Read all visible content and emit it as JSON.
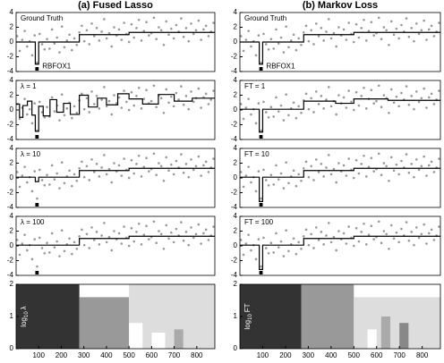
{
  "titles": [
    "(a) Fused Lasso",
    "(b) Markov Loss"
  ],
  "observations": {
    "x": [
      5,
      16,
      27,
      38,
      49,
      60,
      71,
      82,
      93,
      104,
      115,
      126,
      137,
      148,
      159,
      170,
      181,
      192,
      203,
      214,
      225,
      236,
      247,
      258,
      269,
      280,
      291,
      302,
      313,
      324,
      335,
      346,
      357,
      368,
      379,
      390,
      401,
      412,
      423,
      434,
      445,
      456,
      467,
      478,
      489,
      500,
      511,
      522,
      533,
      544,
      555,
      566,
      577,
      588,
      599,
      610,
      621,
      632,
      643,
      654,
      665,
      676,
      687,
      698,
      709,
      720,
      731,
      742,
      753,
      764,
      775,
      786,
      797,
      808,
      819,
      830,
      841,
      852,
      863,
      874
    ],
    "y": [
      0.8,
      -1.2,
      0.3,
      1.5,
      -0.6,
      0.1,
      -1.8,
      0.9,
      -2.8,
      1.1,
      -0.3,
      -1.0,
      0.4,
      -0.9,
      1.7,
      -0.2,
      0.6,
      -1.4,
      2.1,
      -0.7,
      0.2,
      1.0,
      -1.1,
      0.5,
      -0.4,
      1.3,
      2.2,
      0.1,
      1.6,
      -0.3,
      2.5,
      0.8,
      1.9,
      0.2,
      1.4,
      3.1,
      0.5,
      1.2,
      -0.6,
      2.0,
      0.9,
      1.7,
      0.3,
      2.6,
      1.1,
      0.0,
      2.4,
      0.6,
      1.9,
      3.0,
      0.2,
      1.5,
      2.7,
      0.9,
      1.2,
      3.3,
      0.4,
      2.0,
      1.6,
      -0.4,
      2.8,
      1.0,
      1.8,
      0.5,
      2.3,
      1.4,
      3.2,
      0.7,
      1.9,
      0.1,
      2.5,
      1.1,
      1.6,
      2.9,
      0.3,
      1.7,
      2.2,
      0.8,
      1.4,
      2.6
    ]
  },
  "chart_data": [
    {
      "type": "line",
      "label": "Ground Truth",
      "annotation": "RBFOX1",
      "xlim": [
        0,
        880
      ],
      "ylim": [
        -4,
        4
      ],
      "yticks": [
        -4,
        -2,
        0,
        2,
        4
      ],
      "highlight": [
        85,
        100
      ],
      "fit": {
        "x": [
          0,
          85,
          85,
          100,
          100,
          280,
          280,
          500,
          500,
          880
        ],
        "values": [
          0,
          0,
          -3,
          -3,
          0,
          0,
          1,
          1,
          1.3,
          1.3
        ]
      }
    },
    {
      "type": "line",
      "label": "λ = 1",
      "xlim": [
        0,
        880
      ],
      "ylim": [
        -4,
        4
      ],
      "yticks": [
        -4,
        -2,
        0,
        2,
        4
      ],
      "highlight": [
        85,
        100
      ],
      "fit": {
        "x": [
          0,
          15,
          15,
          30,
          30,
          50,
          50,
          70,
          70,
          85,
          85,
          100,
          100,
          120,
          120,
          150,
          150,
          180,
          180,
          210,
          210,
          240,
          240,
          280,
          280,
          320,
          320,
          360,
          360,
          400,
          400,
          450,
          450,
          500,
          500,
          560,
          560,
          630,
          630,
          700,
          700,
          780,
          780,
          880
        ],
        "values": [
          0.8,
          0.8,
          -1.0,
          -1.0,
          0.6,
          0.6,
          1.2,
          1.2,
          -0.7,
          -0.7,
          -2.9,
          -2.9,
          0.5,
          0.5,
          -0.8,
          -0.8,
          1.4,
          1.4,
          -0.3,
          -0.3,
          0.9,
          0.9,
          -0.6,
          -0.6,
          2.0,
          2.0,
          0.4,
          0.4,
          1.6,
          1.6,
          0.7,
          0.7,
          2.2,
          2.2,
          1.5,
          1.5,
          0.8,
          0.8,
          2.1,
          2.1,
          1.2,
          1.2,
          1.6,
          1.6
        ]
      }
    },
    {
      "type": "line",
      "label": "λ = 10",
      "xlim": [
        0,
        880
      ],
      "ylim": [
        -4,
        4
      ],
      "yticks": [
        -4,
        -2,
        0,
        2,
        4
      ],
      "highlight": [
        85,
        100
      ],
      "fit": {
        "x": [
          0,
          85,
          85,
          100,
          100,
          280,
          280,
          500,
          500,
          880
        ],
        "values": [
          0.1,
          0.1,
          -0.5,
          -0.5,
          0.1,
          0.1,
          1,
          1,
          1.3,
          1.3
        ]
      }
    },
    {
      "type": "line",
      "label": "λ = 100",
      "xlim": [
        0,
        880
      ],
      "ylim": [
        -4,
        4
      ],
      "yticks": [
        -4,
        -2,
        0,
        2,
        4
      ],
      "highlight": [
        85,
        100
      ],
      "fit": {
        "x": [
          0,
          280,
          280,
          500,
          500,
          880
        ],
        "values": [
          0.1,
          0.1,
          1,
          1,
          1.3,
          1.3
        ]
      }
    },
    {
      "type": "bands",
      "ylabel": {
        "text": "log",
        "sub": "10",
        "var": "λ"
      },
      "xlim": [
        0,
        880
      ],
      "ylim": [
        0,
        2
      ],
      "yticks": [
        0,
        1,
        2
      ],
      "xticks": [
        100,
        200,
        300,
        400,
        500,
        600,
        700,
        800
      ],
      "bands": [
        {
          "x": [
            0,
            280
          ],
          "height": 2,
          "color": "#333333"
        },
        {
          "x": [
            280,
            500
          ],
          "height": 1.6,
          "color": "#999999"
        },
        {
          "x": [
            500,
            880
          ],
          "height": 2,
          "color": "#dddddd"
        },
        {
          "x": [
            500,
            560
          ],
          "height": 0.8,
          "color": "#ffffff"
        },
        {
          "x": [
            600,
            660
          ],
          "height": 0.5,
          "color": "#ffffff"
        },
        {
          "x": [
            700,
            740
          ],
          "height": 0.6,
          "color": "#aaaaaa"
        }
      ]
    },
    {
      "type": "line",
      "label": "Ground Truth",
      "annotation": "RBFOX1",
      "xlim": [
        0,
        880
      ],
      "ylim": [
        -4,
        4
      ],
      "yticks": [
        -4,
        -2,
        0,
        2,
        4
      ],
      "highlight": [
        85,
        100
      ],
      "fit": {
        "x": [
          0,
          85,
          85,
          100,
          100,
          280,
          280,
          500,
          500,
          880
        ],
        "values": [
          0,
          0,
          -3,
          -3,
          0,
          0,
          1,
          1,
          1.3,
          1.3
        ]
      }
    },
    {
      "type": "line",
      "label": "FT = 1",
      "xlim": [
        0,
        880
      ],
      "ylim": [
        -4,
        4
      ],
      "yticks": [
        -4,
        -2,
        0,
        2,
        4
      ],
      "highlight": [
        85,
        100
      ],
      "fit": {
        "x": [
          0,
          85,
          85,
          100,
          100,
          280,
          280,
          420,
          420,
          500,
          500,
          650,
          650,
          880
        ],
        "values": [
          0.1,
          0.1,
          -3,
          -3,
          0.1,
          0.1,
          1.2,
          1.2,
          0.9,
          0.9,
          1.5,
          1.5,
          1.3,
          1.3
        ]
      }
    },
    {
      "type": "line",
      "label": "FT = 10",
      "xlim": [
        0,
        880
      ],
      "ylim": [
        -4,
        4
      ],
      "yticks": [
        -4,
        -2,
        0,
        2,
        4
      ],
      "highlight": [
        85,
        100
      ],
      "fit": {
        "x": [
          0,
          85,
          85,
          100,
          100,
          280,
          280,
          500,
          500,
          880
        ],
        "values": [
          0.1,
          0.1,
          -3.2,
          -3.2,
          0.1,
          0.1,
          1,
          1,
          1.3,
          1.3
        ]
      }
    },
    {
      "type": "line",
      "label": "FT = 100",
      "xlim": [
        0,
        880
      ],
      "ylim": [
        -4,
        4
      ],
      "yticks": [
        -4,
        -2,
        0,
        2,
        4
      ],
      "highlight": [
        85,
        100
      ],
      "fit": {
        "x": [
          0,
          85,
          85,
          100,
          100,
          280,
          280,
          500,
          500,
          880
        ],
        "values": [
          0.1,
          0.1,
          -3.2,
          -3.2,
          0.1,
          0.1,
          1,
          1,
          1.3,
          1.3
        ]
      }
    },
    {
      "type": "bands",
      "ylabel": {
        "text": "log",
        "sub": "10",
        "var": "FT"
      },
      "xlim": [
        0,
        880
      ],
      "ylim": [
        0,
        2
      ],
      "yticks": [
        0,
        1,
        2
      ],
      "xticks": [
        100,
        200,
        300,
        400,
        500,
        600,
        700,
        800
      ],
      "bands": [
        {
          "x": [
            0,
            270
          ],
          "height": 2,
          "color": "#333333"
        },
        {
          "x": [
            270,
            500
          ],
          "height": 2,
          "color": "#999999"
        },
        {
          "x": [
            500,
            880
          ],
          "height": 1.6,
          "color": "#dddddd"
        },
        {
          "x": [
            560,
            600
          ],
          "height": 0.6,
          "color": "#ffffff"
        },
        {
          "x": [
            620,
            660
          ],
          "height": 1.0,
          "color": "#aaaaaa"
        },
        {
          "x": [
            700,
            740
          ],
          "height": 0.8,
          "color": "#888888"
        }
      ]
    }
  ]
}
